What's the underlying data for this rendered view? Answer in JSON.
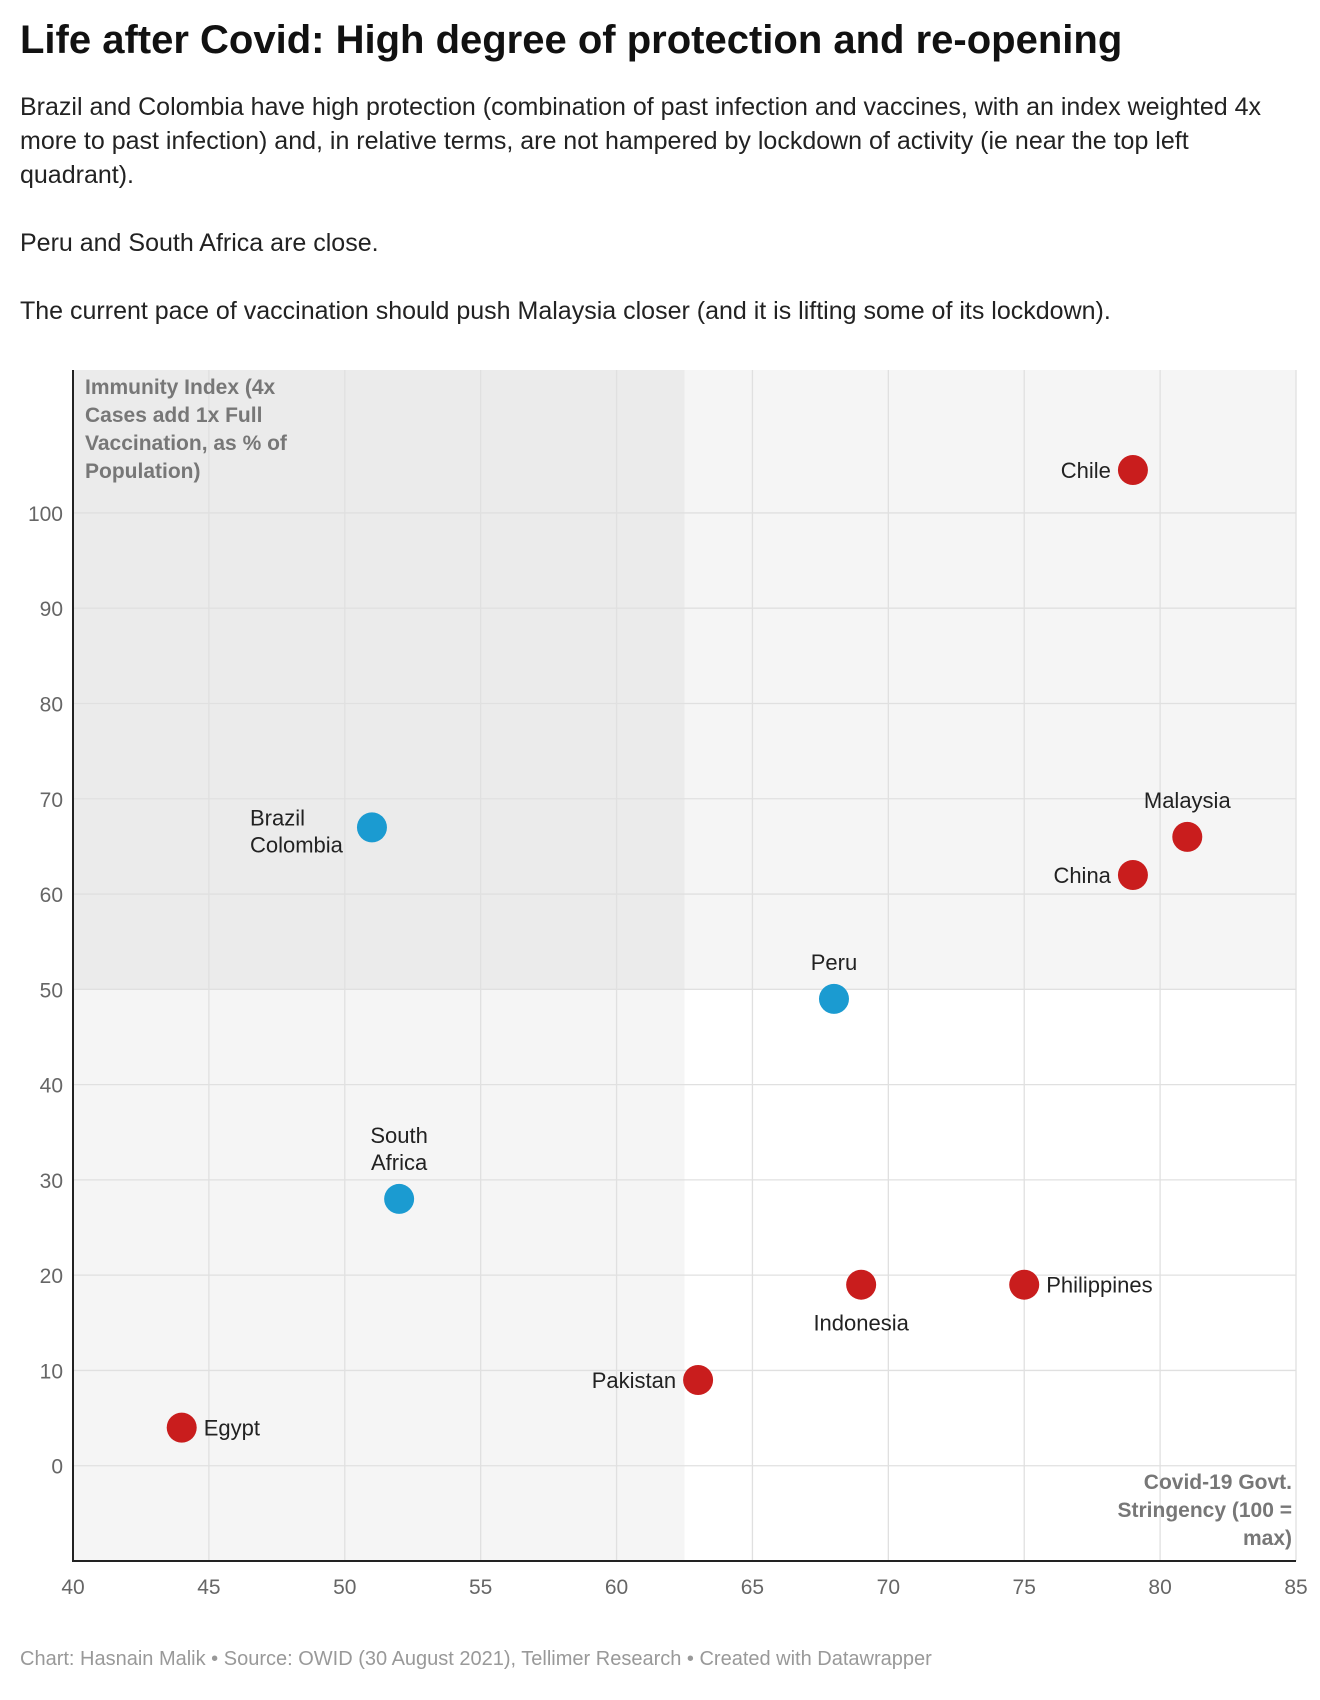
{
  "title": "Life after Covid: High degree of protection and re-opening",
  "description": [
    "Brazil and Colombia have high protection (combination of past infection and vaccines, with an index weighted 4x more to past infection) and, in relative terms, are not hampered by lockdown of activity (ie near the top left quadrant).",
    "Peru and South Africa are close.",
    "The current pace of vaccination should push Malaysia closer (and it is lifting some of its lockdown)."
  ],
  "footer": "Chart: Hasnain Malik • Source: OWID (30 August 2021), Tellimer Research • Created with Datawrapper",
  "colors": {
    "red": "#c91d1d",
    "blue": "#1b9bd1",
    "quadrant_top_left": "#ebebeb",
    "quadrant_top_right": "#f5f5f5",
    "quadrant_bottom_left": "#f5f5f5",
    "quadrant_bottom_right": "#ffffff"
  },
  "chart_data": {
    "type": "scatter",
    "xlabel": "Covid-19 Govt. Stringency (100 = max)",
    "ylabel": "Immunity Index (4x Cases add 1x Full Vaccination, as % of Population)",
    "xlim": [
      40,
      85
    ],
    "ylim": [
      -10,
      115
    ],
    "x_ticks": [
      40,
      45,
      50,
      55,
      60,
      65,
      70,
      75,
      80,
      85
    ],
    "y_ticks": [
      0,
      10,
      20,
      30,
      40,
      50,
      60,
      70,
      80,
      90,
      100
    ],
    "grid": true,
    "quadrant_split": {
      "x": 62.5,
      "y": 50
    },
    "points": [
      {
        "label": "Chile",
        "x": 79,
        "y": 104.5,
        "color": "red",
        "label_pos": "left"
      },
      {
        "label": "Malaysia",
        "x": 81,
        "y": 66,
        "color": "red",
        "label_pos": "above"
      },
      {
        "label": "China",
        "x": 79,
        "y": 62,
        "color": "red",
        "label_pos": "left"
      },
      {
        "label": "Brazil\nColombia",
        "x": 51,
        "y": 67,
        "color": "blue",
        "label_pos": "left"
      },
      {
        "label": "Peru",
        "x": 68,
        "y": 49,
        "color": "blue",
        "label_pos": "above"
      },
      {
        "label": "South\nAfrica",
        "x": 52,
        "y": 28,
        "color": "blue",
        "label_pos": "above"
      },
      {
        "label": "Indonesia",
        "x": 69,
        "y": 19,
        "color": "red",
        "label_pos": "below"
      },
      {
        "label": "Philippines",
        "x": 75,
        "y": 19,
        "color": "red",
        "label_pos": "right"
      },
      {
        "label": "Pakistan",
        "x": 63,
        "y": 9,
        "color": "red",
        "label_pos": "left"
      },
      {
        "label": "Egypt",
        "x": 44,
        "y": 4,
        "color": "red",
        "label_pos": "right"
      }
    ]
  }
}
